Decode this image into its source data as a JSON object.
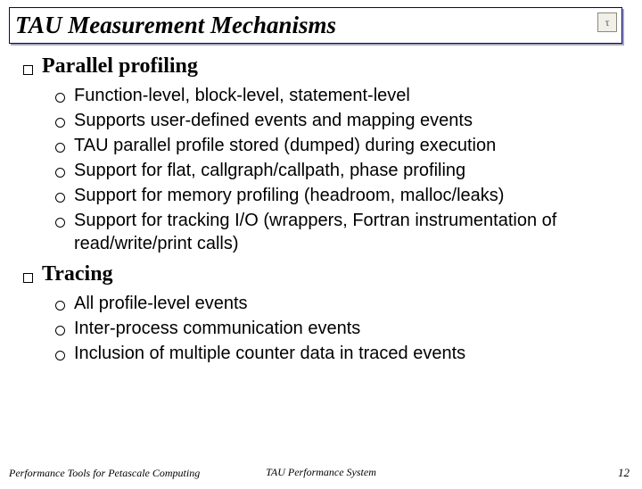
{
  "title": "TAU Measurement Mechanisms",
  "logo_symbol": "τ",
  "sections": [
    {
      "heading": "Parallel profiling",
      "items": [
        "Function-level, block-level, statement-level",
        "Supports user-defined events and mapping events",
        "TAU parallel profile stored (dumped) during execution",
        "Support for flat, callgraph/callpath, phase profiling",
        "Support for memory profiling (headroom, malloc/leaks)",
        "Support for tracking I/O (wrappers, Fortran instrumentation of read/write/print calls)"
      ]
    },
    {
      "heading": "Tracing",
      "items": [
        "All profile-level events",
        "Inter-process communication events",
        "Inclusion of multiple counter data in traced events"
      ]
    }
  ],
  "footer": {
    "left": "Performance Tools for Petascale Computing",
    "center": "TAU Performance System",
    "page": "12"
  },
  "colors": {
    "title_border": "#000080",
    "text": "#000000",
    "bg": "#ffffff"
  }
}
